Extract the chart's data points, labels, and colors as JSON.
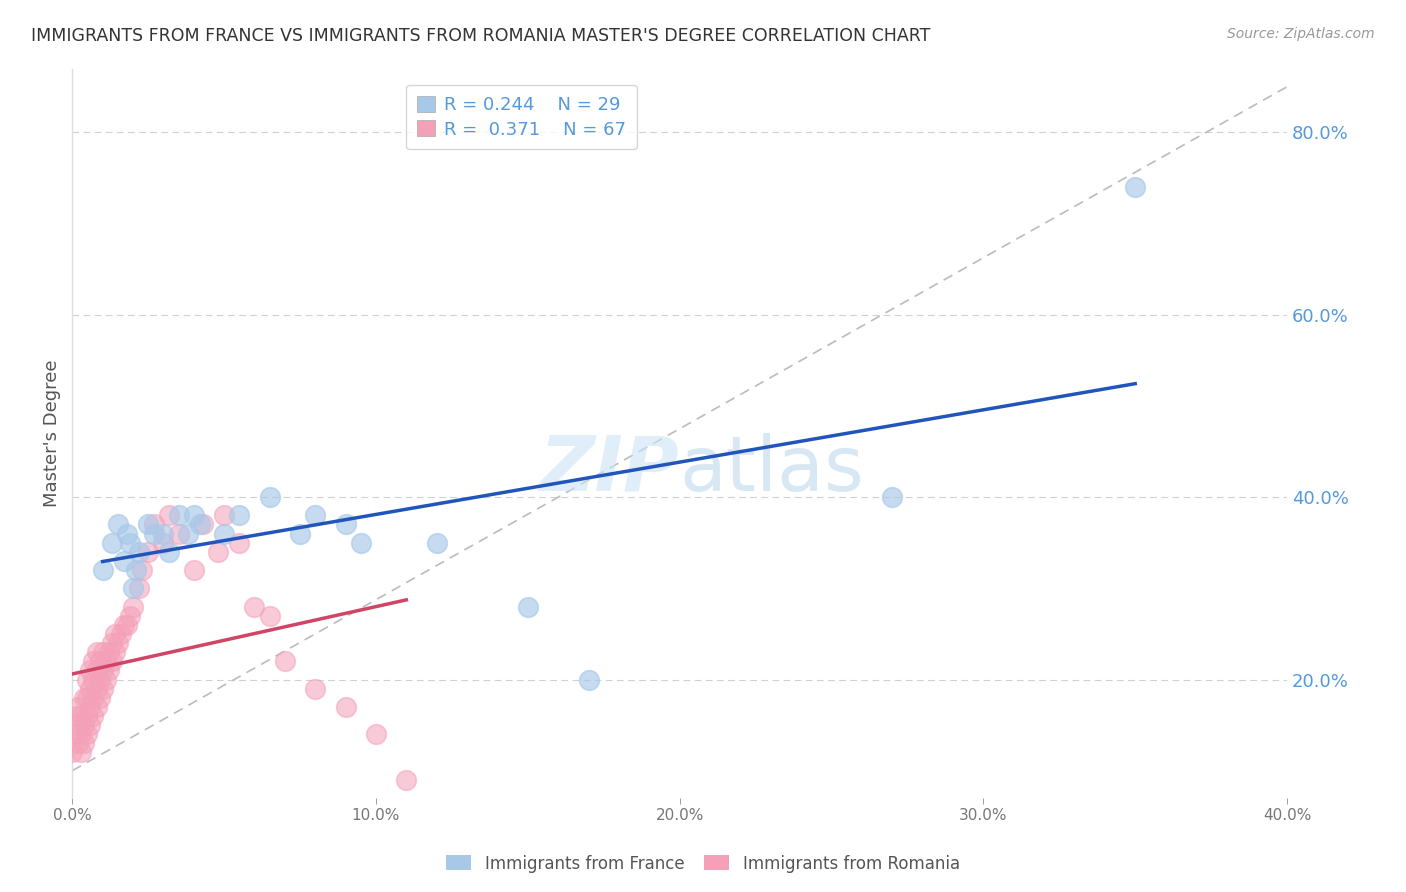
{
  "title": "IMMIGRANTS FROM FRANCE VS IMMIGRANTS FROM ROMANIA MASTER'S DEGREE CORRELATION CHART",
  "source": "Source: ZipAtlas.com",
  "ylabel": "Master's Degree",
  "legend_france": "Immigrants from France",
  "legend_romania": "Immigrants from Romania",
  "R_france": 0.244,
  "N_france": 29,
  "R_romania": 0.371,
  "N_romania": 67,
  "france_color": "#a8c8e8",
  "romania_color": "#f4a0b8",
  "france_line_color": "#2255bb",
  "romania_line_color": "#d04565",
  "xlim": [
    0.0,
    0.4
  ],
  "ylim": [
    0.07,
    0.87
  ],
  "xticks": [
    0.0,
    0.1,
    0.2,
    0.3,
    0.4
  ],
  "yticks": [
    0.2,
    0.4,
    0.6,
    0.8
  ],
  "xtick_labels": [
    "0.0%",
    "10.0%",
    "20.0%",
    "30.0%",
    "40.0%"
  ],
  "ytick_labels": [
    "20.0%",
    "40.0%",
    "60.0%",
    "80.0%"
  ],
  "france_x": [
    0.01,
    0.013,
    0.015,
    0.017,
    0.018,
    0.019,
    0.02,
    0.021,
    0.022,
    0.025,
    0.027,
    0.03,
    0.032,
    0.035,
    0.038,
    0.04,
    0.042,
    0.05,
    0.055,
    0.065,
    0.075,
    0.08,
    0.09,
    0.095,
    0.12,
    0.15,
    0.17,
    0.27,
    0.35
  ],
  "france_y": [
    0.32,
    0.35,
    0.37,
    0.33,
    0.36,
    0.35,
    0.3,
    0.32,
    0.34,
    0.37,
    0.36,
    0.36,
    0.34,
    0.38,
    0.36,
    0.38,
    0.37,
    0.36,
    0.38,
    0.4,
    0.36,
    0.38,
    0.37,
    0.35,
    0.35,
    0.28,
    0.2,
    0.4,
    0.74
  ],
  "romania_x": [
    0.0,
    0.001,
    0.001,
    0.002,
    0.002,
    0.002,
    0.003,
    0.003,
    0.003,
    0.004,
    0.004,
    0.004,
    0.005,
    0.005,
    0.005,
    0.005,
    0.006,
    0.006,
    0.006,
    0.006,
    0.007,
    0.007,
    0.007,
    0.007,
    0.008,
    0.008,
    0.008,
    0.008,
    0.009,
    0.009,
    0.009,
    0.01,
    0.01,
    0.01,
    0.011,
    0.011,
    0.012,
    0.012,
    0.013,
    0.013,
    0.014,
    0.014,
    0.015,
    0.016,
    0.017,
    0.018,
    0.019,
    0.02,
    0.022,
    0.023,
    0.025,
    0.027,
    0.03,
    0.032,
    0.035,
    0.04,
    0.043,
    0.048,
    0.05,
    0.055,
    0.06,
    0.065,
    0.07,
    0.08,
    0.09,
    0.1,
    0.11
  ],
  "romania_y": [
    0.12,
    0.14,
    0.16,
    0.13,
    0.15,
    0.17,
    0.12,
    0.14,
    0.16,
    0.13,
    0.15,
    0.18,
    0.14,
    0.16,
    0.18,
    0.2,
    0.15,
    0.17,
    0.19,
    0.21,
    0.16,
    0.18,
    0.2,
    0.22,
    0.17,
    0.19,
    0.21,
    0.23,
    0.18,
    0.2,
    0.22,
    0.19,
    0.21,
    0.23,
    0.2,
    0.22,
    0.21,
    0.23,
    0.22,
    0.24,
    0.23,
    0.25,
    0.24,
    0.25,
    0.26,
    0.26,
    0.27,
    0.28,
    0.3,
    0.32,
    0.34,
    0.37,
    0.35,
    0.38,
    0.36,
    0.32,
    0.37,
    0.34,
    0.38,
    0.35,
    0.28,
    0.27,
    0.22,
    0.19,
    0.17,
    0.14,
    0.09
  ],
  "watermark_zip": "ZIP",
  "watermark_atlas": "atlas",
  "background_color": "#ffffff",
  "grid_color": "#d0d0d0",
  "title_color": "#333333",
  "source_color": "#999999",
  "ylabel_color": "#555555",
  "tick_color": "#777777",
  "right_ytick_color": "#5599dd"
}
